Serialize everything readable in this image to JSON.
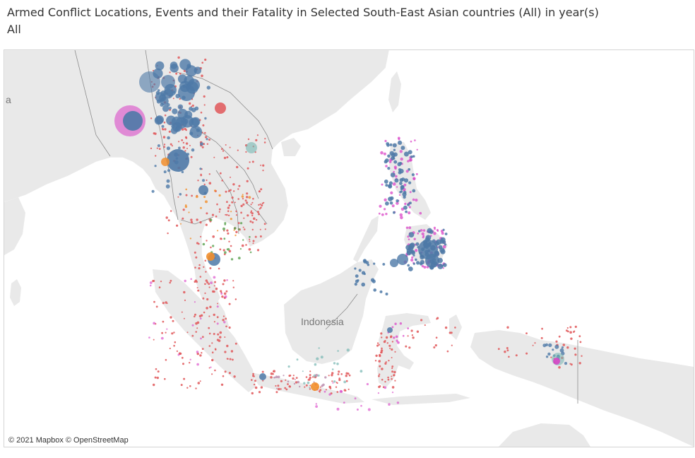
{
  "title": {
    "line1": "Armed Conflict Locations, Events and their Fatality in Selected South-East Asian countries (All) in year(s)",
    "line2": "All"
  },
  "map": {
    "country_label": "Indonesia",
    "edge_label": "a",
    "attribution": "© 2021 Mapbox © OpenStreetMap",
    "colors": {
      "water": "#ffffff",
      "land": "#e9e9e9",
      "border": "#8c8c8c",
      "blue": "#4e79a7",
      "red": "#e15759",
      "magenta": "#d93cc5",
      "orange": "#f28e2b",
      "teal": "#76b7b2",
      "green": "#59a14f",
      "purple": "#b07aa1"
    }
  }
}
